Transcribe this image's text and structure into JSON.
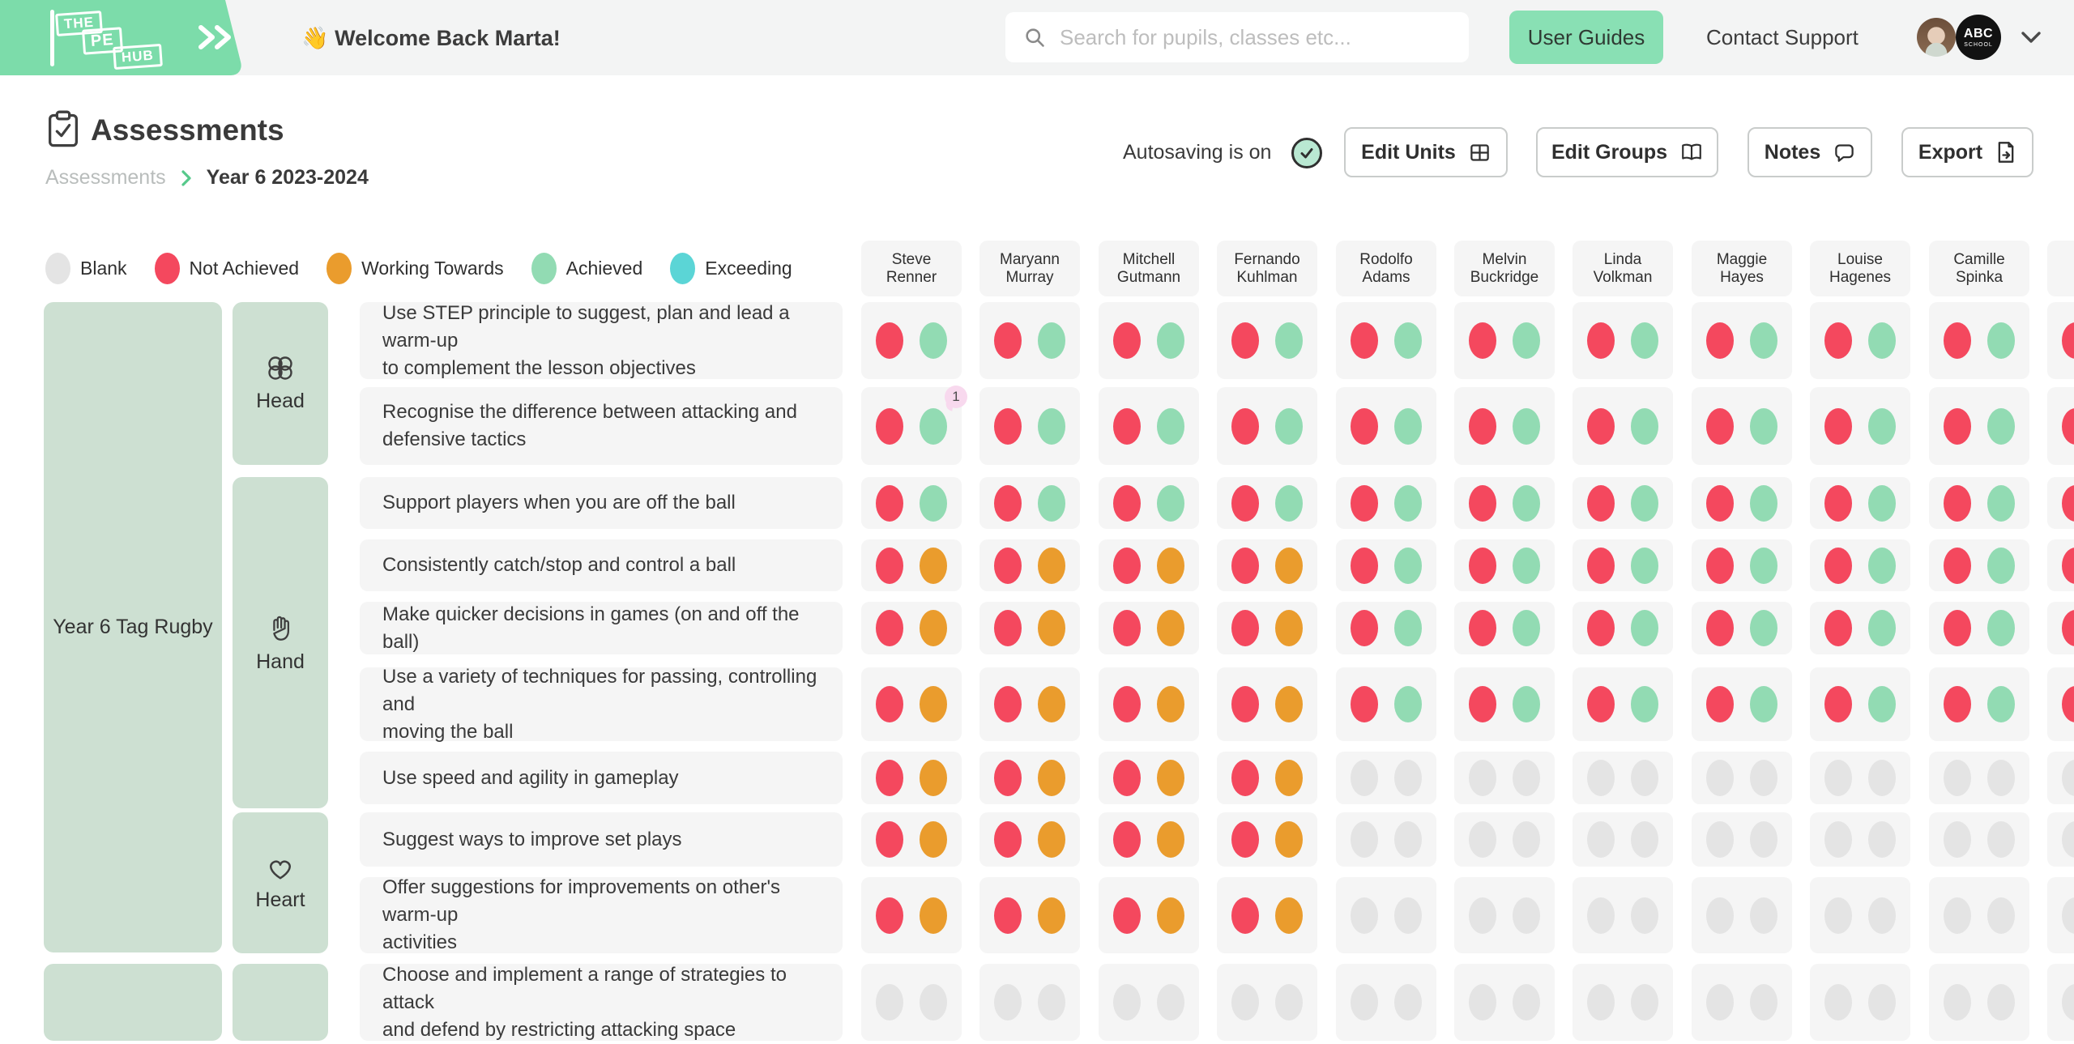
{
  "header": {
    "logo": {
      "the": "THE",
      "pe": "PE",
      "hub": "HUB"
    },
    "welcome": "👋 Welcome Back Marta!",
    "search_placeholder": "Search for pupils, classes etc...",
    "user_guides": "User Guides",
    "contact_support": "Contact Support",
    "school_badge": {
      "line1": "ABC",
      "line2": "SCHOOL"
    }
  },
  "page": {
    "title": "Assessments",
    "breadcrumb": {
      "parent": "Assessments",
      "current": "Year 6 2023-2024"
    },
    "autosave": "Autosaving is on",
    "buttons": {
      "edit_units": "Edit Units",
      "edit_groups": "Edit Groups",
      "notes": "Notes",
      "export": "Export"
    }
  },
  "colors": {
    "b": "#e4e4e4",
    "na": "#f4485e",
    "wt": "#ea9c2d",
    "a": "#92dbb3",
    "e": "#5bd5d6",
    "accent_green": "#7cdcaa",
    "card_green": "#cde0d2"
  },
  "legend": {
    "items": [
      {
        "label": "Blank",
        "status": "b"
      },
      {
        "label": "Not Achieved",
        "status": "na"
      },
      {
        "label": "Working Towards",
        "status": "wt"
      },
      {
        "label": "Achieved",
        "status": "a"
      },
      {
        "label": "Exceeding",
        "status": "e"
      }
    ]
  },
  "students": [
    "Steve Renner",
    "Maryann Murray",
    "Mitchell Gutmann",
    "Fernando Kuhlman",
    "Rodolfo Adams",
    "Melvin Buckridge",
    "Linda Volkman",
    "Maggie Hayes",
    "Louise Hagenes",
    "Camille Spinka"
  ],
  "unit": {
    "name": "Year 6 Tag Rugby"
  },
  "sections": [
    {
      "name": "Head",
      "icon": "brain"
    },
    {
      "name": "Hand",
      "icon": "hand"
    },
    {
      "name": "Heart",
      "icon": "heart"
    }
  ],
  "grid": {
    "rows": [
      {
        "text": "Use STEP principle to suggest, plan and lead a warm-up\nto complement the lesson objectives",
        "cells": [
          [
            "na",
            "a"
          ],
          [
            "na",
            "a"
          ],
          [
            "na",
            "a"
          ],
          [
            "na",
            "a"
          ],
          [
            "na",
            "a"
          ],
          [
            "na",
            "a"
          ],
          [
            "na",
            "a"
          ],
          [
            "na",
            "a"
          ],
          [
            "na",
            "a"
          ],
          [
            "na",
            "a"
          ]
        ]
      },
      {
        "text": "Recognise the difference between attacking and\ndefensive tactics",
        "badge": {
          "cell": 0,
          "label": "1"
        },
        "cells": [
          [
            "na",
            "a"
          ],
          [
            "na",
            "a"
          ],
          [
            "na",
            "a"
          ],
          [
            "na",
            "a"
          ],
          [
            "na",
            "a"
          ],
          [
            "na",
            "a"
          ],
          [
            "na",
            "a"
          ],
          [
            "na",
            "a"
          ],
          [
            "na",
            "a"
          ],
          [
            "na",
            "a"
          ]
        ]
      },
      {
        "text": "Support players when you are off the ball",
        "cells": [
          [
            "na",
            "a"
          ],
          [
            "na",
            "a"
          ],
          [
            "na",
            "a"
          ],
          [
            "na",
            "a"
          ],
          [
            "na",
            "a"
          ],
          [
            "na",
            "a"
          ],
          [
            "na",
            "a"
          ],
          [
            "na",
            "a"
          ],
          [
            "na",
            "a"
          ],
          [
            "na",
            "a"
          ]
        ]
      },
      {
        "text": "Consistently catch/stop and control a ball",
        "cells": [
          [
            "na",
            "wt"
          ],
          [
            "na",
            "wt"
          ],
          [
            "na",
            "wt"
          ],
          [
            "na",
            "wt"
          ],
          [
            "na",
            "a"
          ],
          [
            "na",
            "a"
          ],
          [
            "na",
            "a"
          ],
          [
            "na",
            "a"
          ],
          [
            "na",
            "a"
          ],
          [
            "na",
            "a"
          ]
        ]
      },
      {
        "text": "Make quicker decisions in games (on and off the ball)",
        "cells": [
          [
            "na",
            "wt"
          ],
          [
            "na",
            "wt"
          ],
          [
            "na",
            "wt"
          ],
          [
            "na",
            "wt"
          ],
          [
            "na",
            "a"
          ],
          [
            "na",
            "a"
          ],
          [
            "na",
            "a"
          ],
          [
            "na",
            "a"
          ],
          [
            "na",
            "a"
          ],
          [
            "na",
            "a"
          ]
        ]
      },
      {
        "text": "Use a variety of techniques for passing, controlling and\nmoving the ball",
        "cells": [
          [
            "na",
            "wt"
          ],
          [
            "na",
            "wt"
          ],
          [
            "na",
            "wt"
          ],
          [
            "na",
            "wt"
          ],
          [
            "na",
            "a"
          ],
          [
            "na",
            "a"
          ],
          [
            "na",
            "a"
          ],
          [
            "na",
            "a"
          ],
          [
            "na",
            "a"
          ],
          [
            "na",
            "a"
          ]
        ]
      },
      {
        "text": "Use speed and agility in gameplay",
        "cells": [
          [
            "na",
            "wt"
          ],
          [
            "na",
            "wt"
          ],
          [
            "na",
            "wt"
          ],
          [
            "na",
            "wt"
          ],
          [
            "b",
            "b"
          ],
          [
            "b",
            "b"
          ],
          [
            "b",
            "b"
          ],
          [
            "b",
            "b"
          ],
          [
            "b",
            "b"
          ],
          [
            "b",
            "b"
          ]
        ]
      },
      {
        "text": "Suggest ways to improve set plays",
        "cells": [
          [
            "na",
            "wt"
          ],
          [
            "na",
            "wt"
          ],
          [
            "na",
            "wt"
          ],
          [
            "na",
            "wt"
          ],
          [
            "b",
            "b"
          ],
          [
            "b",
            "b"
          ],
          [
            "b",
            "b"
          ],
          [
            "b",
            "b"
          ],
          [
            "b",
            "b"
          ],
          [
            "b",
            "b"
          ]
        ]
      },
      {
        "text": "Offer suggestions for improvements on other's warm-up\nactivities",
        "cells": [
          [
            "na",
            "wt"
          ],
          [
            "na",
            "wt"
          ],
          [
            "na",
            "wt"
          ],
          [
            "na",
            "wt"
          ],
          [
            "b",
            "b"
          ],
          [
            "b",
            "b"
          ],
          [
            "b",
            "b"
          ],
          [
            "b",
            "b"
          ],
          [
            "b",
            "b"
          ],
          [
            "b",
            "b"
          ]
        ]
      },
      {
        "text": "Choose and implement a range of strategies to attack\nand defend by restricting attacking space",
        "cells": [
          [
            "b",
            "b"
          ],
          [
            "b",
            "b"
          ],
          [
            "b",
            "b"
          ],
          [
            "b",
            "b"
          ],
          [
            "b",
            "b"
          ],
          [
            "b",
            "b"
          ],
          [
            "b",
            "b"
          ],
          [
            "b",
            "b"
          ],
          [
            "b",
            "b"
          ],
          [
            "b",
            "b"
          ]
        ]
      }
    ]
  }
}
